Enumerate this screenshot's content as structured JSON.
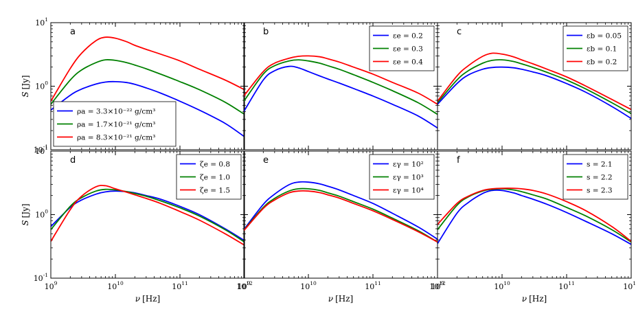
{
  "chart_data": [
    {
      "panel": "a",
      "type": "line",
      "xscale": "log",
      "yscale": "log",
      "xlim": [
        1000000000.0,
        1000000000000.0
      ],
      "ylim": [
        0.1,
        10
      ],
      "ylabel": "S [Jy]",
      "legend_loc": "lower-left",
      "series": [
        {
          "name": "ρa = 3.3×10⁻²² g/cm³",
          "color": "#0000ff",
          "x": [
            1000000000.0,
            2000000000.0,
            3000000000.0,
            5000000000.0,
            7000000000.0,
            10000000000.0,
            15000000000.0,
            20000000000.0,
            30000000000.0,
            50000000000.0,
            100000000000.0,
            200000000000.0,
            500000000000.0,
            1000000000000.0
          ],
          "y": [
            0.42,
            0.72,
            0.9,
            1.08,
            1.16,
            1.18,
            1.14,
            1.07,
            0.94,
            0.78,
            0.58,
            0.42,
            0.26,
            0.16
          ]
        },
        {
          "name": "ρa = 1.7×10⁻²¹ g/cm³",
          "color": "#008000",
          "x": [
            1000000000.0,
            2000000000.0,
            3000000000.0,
            5000000000.0,
            7000000000.0,
            10000000000.0,
            15000000000.0,
            20000000000.0,
            30000000000.0,
            50000000000.0,
            100000000000.0,
            200000000000.0,
            500000000000.0,
            1000000000000.0
          ],
          "y": [
            0.52,
            1.25,
            1.8,
            2.35,
            2.6,
            2.55,
            2.35,
            2.15,
            1.88,
            1.55,
            1.18,
            0.88,
            0.56,
            0.36
          ]
        },
        {
          "name": "ρa = 8.3×10⁻²¹ g/cm³",
          "color": "#ff0000",
          "x": [
            1000000000.0,
            2000000000.0,
            3000000000.0,
            5000000000.0,
            7000000000.0,
            10000000000.0,
            15000000000.0,
            20000000000.0,
            30000000000.0,
            50000000000.0,
            100000000000.0,
            200000000000.0,
            500000000000.0,
            1000000000000.0
          ],
          "y": [
            0.58,
            1.9,
            3.3,
            5.2,
            5.9,
            5.7,
            5.0,
            4.4,
            3.8,
            3.2,
            2.5,
            1.85,
            1.25,
            0.88
          ]
        }
      ]
    },
    {
      "panel": "b",
      "type": "line",
      "xscale": "log",
      "yscale": "log",
      "xlim": [
        1000000000.0,
        1000000000000.0
      ],
      "ylim": [
        0.1,
        10
      ],
      "legend_loc": "top-right",
      "series": [
        {
          "name": "εe = 0.2",
          "color": "#0000ff",
          "x": [
            1000000000.0,
            2000000000.0,
            3000000000.0,
            5000000000.0,
            7000000000.0,
            10000000000.0,
            15000000000.0,
            20000000000.0,
            30000000000.0,
            50000000000.0,
            100000000000.0,
            200000000000.0,
            500000000000.0,
            1000000000000.0
          ],
          "y": [
            0.4,
            1.25,
            1.75,
            2.05,
            1.95,
            1.7,
            1.45,
            1.3,
            1.12,
            0.92,
            0.7,
            0.52,
            0.34,
            0.22
          ]
        },
        {
          "name": "εe = 0.3",
          "color": "#008000",
          "x": [
            1000000000.0,
            2000000000.0,
            3000000000.0,
            5000000000.0,
            7000000000.0,
            10000000000.0,
            15000000000.0,
            20000000000.0,
            30000000000.0,
            50000000000.0,
            100000000000.0,
            200000000000.0,
            500000000000.0,
            1000000000000.0
          ],
          "y": [
            0.58,
            1.55,
            2.1,
            2.5,
            2.6,
            2.5,
            2.3,
            2.1,
            1.85,
            1.52,
            1.15,
            0.85,
            0.55,
            0.36
          ]
        },
        {
          "name": "εe = 0.4",
          "color": "#ff0000",
          "x": [
            1000000000.0,
            2000000000.0,
            3000000000.0,
            5000000000.0,
            7000000000.0,
            10000000000.0,
            15000000000.0,
            20000000000.0,
            30000000000.0,
            50000000000.0,
            100000000000.0,
            200000000000.0,
            500000000000.0,
            1000000000000.0
          ],
          "y": [
            0.7,
            1.7,
            2.3,
            2.75,
            2.95,
            3.0,
            2.9,
            2.7,
            2.4,
            2.0,
            1.55,
            1.15,
            0.78,
            0.52
          ]
        }
      ]
    },
    {
      "panel": "c",
      "type": "line",
      "xscale": "log",
      "yscale": "log",
      "xlim": [
        1000000000.0,
        1000000000000.0
      ],
      "ylim": [
        0.1,
        10
      ],
      "legend_loc": "top-right",
      "series": [
        {
          "name": "εb = 0.05",
          "color": "#0000ff",
          "x": [
            1000000000.0,
            2000000000.0,
            3000000000.0,
            5000000000.0,
            7000000000.0,
            10000000000.0,
            15000000000.0,
            20000000000.0,
            30000000000.0,
            50000000000.0,
            100000000000.0,
            200000000000.0,
            500000000000.0,
            1000000000000.0
          ],
          "y": [
            0.52,
            1.1,
            1.5,
            1.85,
            1.97,
            2.0,
            1.95,
            1.85,
            1.68,
            1.45,
            1.1,
            0.8,
            0.48,
            0.31
          ]
        },
        {
          "name": "εb = 0.1",
          "color": "#008000",
          "x": [
            1000000000.0,
            2000000000.0,
            3000000000.0,
            5000000000.0,
            7000000000.0,
            10000000000.0,
            15000000000.0,
            20000000000.0,
            30000000000.0,
            50000000000.0,
            100000000000.0,
            200000000000.0,
            500000000000.0,
            1000000000000.0
          ],
          "y": [
            0.55,
            1.25,
            1.75,
            2.3,
            2.55,
            2.6,
            2.45,
            2.25,
            1.98,
            1.65,
            1.25,
            0.9,
            0.55,
            0.37
          ]
        },
        {
          "name": "εb = 0.2",
          "color": "#ff0000",
          "x": [
            1000000000.0,
            2000000000.0,
            3000000000.0,
            5000000000.0,
            7000000000.0,
            10000000000.0,
            15000000000.0,
            20000000000.0,
            30000000000.0,
            50000000000.0,
            100000000000.0,
            200000000000.0,
            500000000000.0,
            1000000000000.0
          ],
          "y": [
            0.58,
            1.45,
            2.1,
            2.95,
            3.3,
            3.2,
            2.9,
            2.6,
            2.25,
            1.85,
            1.4,
            1.0,
            0.62,
            0.43
          ]
        }
      ]
    },
    {
      "panel": "d",
      "type": "line",
      "xscale": "log",
      "yscale": "log",
      "xlim": [
        1000000000.0,
        1000000000000.0
      ],
      "ylim": [
        0.1,
        10
      ],
      "ylabel": "S [Jy]",
      "xlabel": "ν [Hz]",
      "legend_loc": "top-right",
      "series": [
        {
          "name": "ζe = 0.8",
          "color": "#0000ff",
          "x": [
            1000000000.0,
            2000000000.0,
            3000000000.0,
            5000000000.0,
            7000000000.0,
            10000000000.0,
            15000000000.0,
            20000000000.0,
            30000000000.0,
            50000000000.0,
            100000000000.0,
            200000000000.0,
            500000000000.0,
            1000000000000.0
          ],
          "y": [
            0.65,
            1.3,
            1.7,
            2.1,
            2.28,
            2.35,
            2.3,
            2.2,
            2.0,
            1.75,
            1.35,
            1.0,
            0.6,
            0.39
          ]
        },
        {
          "name": "ζe = 1.0",
          "color": "#008000",
          "x": [
            1000000000.0,
            2000000000.0,
            3000000000.0,
            5000000000.0,
            7000000000.0,
            10000000000.0,
            15000000000.0,
            20000000000.0,
            30000000000.0,
            50000000000.0,
            100000000000.0,
            200000000000.0,
            500000000000.0,
            1000000000000.0
          ],
          "y": [
            0.58,
            1.35,
            1.85,
            2.35,
            2.5,
            2.45,
            2.3,
            2.15,
            1.95,
            1.65,
            1.28,
            0.95,
            0.58,
            0.37
          ]
        },
        {
          "name": "ζe = 1.5",
          "color": "#ff0000",
          "x": [
            1000000000.0,
            2000000000.0,
            3000000000.0,
            5000000000.0,
            7000000000.0,
            10000000000.0,
            15000000000.0,
            20000000000.0,
            30000000000.0,
            50000000000.0,
            100000000000.0,
            200000000000.0,
            500000000000.0,
            1000000000000.0
          ],
          "y": [
            0.38,
            1.2,
            1.95,
            2.75,
            2.85,
            2.55,
            2.25,
            2.05,
            1.8,
            1.5,
            1.12,
            0.82,
            0.5,
            0.33
          ]
        }
      ]
    },
    {
      "panel": "e",
      "type": "line",
      "xscale": "log",
      "yscale": "log",
      "xlim": [
        1000000000.0,
        1000000000000.0
      ],
      "ylim": [
        0.1,
        10
      ],
      "xlabel": "ν [Hz]",
      "legend_loc": "top-right",
      "series": [
        {
          "name": "εγ = 10²",
          "color": "#0000ff",
          "x": [
            1000000000.0,
            2000000000.0,
            3000000000.0,
            5000000000.0,
            7000000000.0,
            10000000000.0,
            15000000000.0,
            20000000000.0,
            30000000000.0,
            50000000000.0,
            100000000000.0,
            200000000000.0,
            500000000000.0,
            1000000000000.0
          ],
          "y": [
            0.58,
            1.45,
            2.1,
            2.95,
            3.25,
            3.25,
            3.05,
            2.8,
            2.45,
            2.0,
            1.5,
            1.05,
            0.64,
            0.41
          ]
        },
        {
          "name": "εγ = 10³",
          "color": "#008000",
          "x": [
            1000000000.0,
            2000000000.0,
            3000000000.0,
            5000000000.0,
            7000000000.0,
            10000000000.0,
            15000000000.0,
            20000000000.0,
            30000000000.0,
            50000000000.0,
            100000000000.0,
            200000000000.0,
            500000000000.0,
            1000000000000.0
          ],
          "y": [
            0.57,
            1.3,
            1.8,
            2.35,
            2.55,
            2.55,
            2.4,
            2.2,
            1.95,
            1.6,
            1.22,
            0.88,
            0.56,
            0.37
          ]
        },
        {
          "name": "εγ = 10⁴",
          "color": "#ff0000",
          "x": [
            1000000000.0,
            2000000000.0,
            3000000000.0,
            5000000000.0,
            7000000000.0,
            10000000000.0,
            15000000000.0,
            20000000000.0,
            30000000000.0,
            50000000000.0,
            100000000000.0,
            200000000000.0,
            500000000000.0,
            1000000000000.0
          ],
          "y": [
            0.56,
            1.25,
            1.7,
            2.2,
            2.35,
            2.35,
            2.22,
            2.05,
            1.82,
            1.5,
            1.15,
            0.84,
            0.54,
            0.37
          ]
        }
      ]
    },
    {
      "panel": "f",
      "type": "line",
      "xscale": "log",
      "yscale": "log",
      "xlim": [
        1000000000.0,
        1000000000000.0
      ],
      "ylim": [
        0.1,
        10
      ],
      "xlabel": "ν [Hz]",
      "legend_loc": "top-right",
      "series": [
        {
          "name": "s = 2.1",
          "color": "#0000ff",
          "x": [
            1000000000.0,
            2000000000.0,
            3000000000.0,
            5000000000.0,
            7000000000.0,
            10000000000.0,
            15000000000.0,
            20000000000.0,
            30000000000.0,
            50000000000.0,
            100000000000.0,
            200000000000.0,
            500000000000.0,
            1000000000000.0
          ],
          "y": [
            0.35,
            1.05,
            1.55,
            2.15,
            2.4,
            2.4,
            2.2,
            2.0,
            1.75,
            1.45,
            1.08,
            0.78,
            0.5,
            0.34
          ]
        },
        {
          "name": "s = 2.2",
          "color": "#008000",
          "x": [
            1000000000.0,
            2000000000.0,
            3000000000.0,
            5000000000.0,
            7000000000.0,
            10000000000.0,
            15000000000.0,
            20000000000.0,
            30000000000.0,
            50000000000.0,
            100000000000.0,
            200000000000.0,
            500000000000.0,
            1000000000000.0
          ],
          "y": [
            0.58,
            1.4,
            1.9,
            2.35,
            2.5,
            2.55,
            2.45,
            2.3,
            2.05,
            1.75,
            1.3,
            0.95,
            0.58,
            0.37
          ]
        },
        {
          "name": "s = 2.3",
          "color": "#ff0000",
          "x": [
            1000000000.0,
            2000000000.0,
            3000000000.0,
            5000000000.0,
            7000000000.0,
            10000000000.0,
            15000000000.0,
            20000000000.0,
            30000000000.0,
            50000000000.0,
            100000000000.0,
            200000000000.0,
            500000000000.0,
            1000000000000.0
          ],
          "y": [
            0.7,
            1.5,
            1.95,
            2.4,
            2.55,
            2.6,
            2.6,
            2.55,
            2.4,
            2.1,
            1.6,
            1.15,
            0.65,
            0.38
          ]
        }
      ]
    }
  ],
  "tick_labels": {
    "x": [
      {
        "base": "10",
        "exp": "9"
      },
      {
        "base": "10",
        "exp": "10"
      },
      {
        "base": "10",
        "exp": "11"
      },
      {
        "base": "10",
        "exp": "12"
      }
    ],
    "y": [
      {
        "base": "10",
        "exp": "-1"
      },
      {
        "base": "10",
        "exp": "0"
      },
      {
        "base": "10",
        "exp": "1"
      }
    ]
  }
}
